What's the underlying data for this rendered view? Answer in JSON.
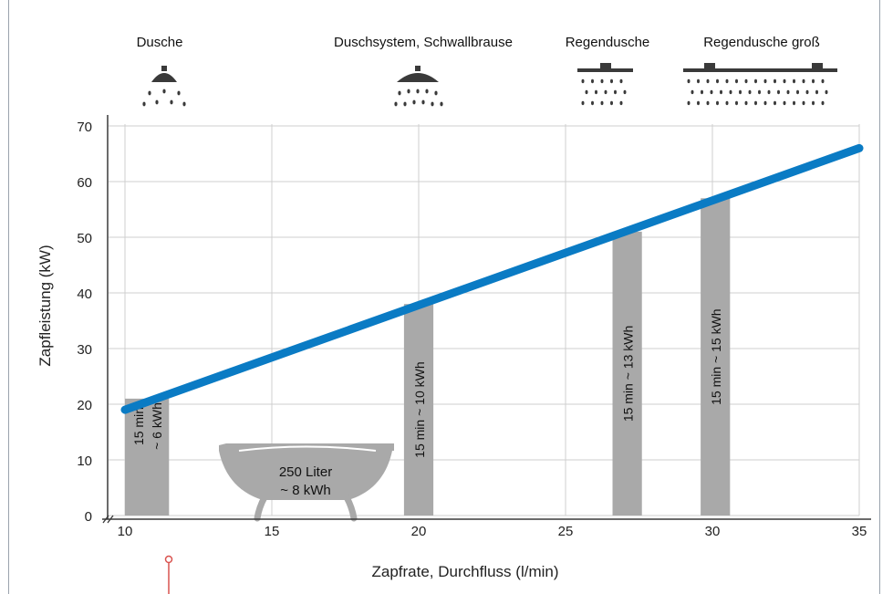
{
  "colors": {
    "line": "#0a7bc4",
    "bar": "#a9a9a9",
    "grid": "#cfcfcf",
    "axis": "#3a3a3a",
    "icon": "#3a3a3a",
    "marker": "#d9534f"
  },
  "showers": [
    {
      "label": "Dusche",
      "icon": "small-shower-head-icon"
    },
    {
      "label": "Duschsystem, Schwallbrause",
      "icon": "large-shower-head-icon"
    },
    {
      "label": "Regendusche",
      "icon": "rain-shower-icon"
    },
    {
      "label": "Regendusche groß",
      "icon": "large-rain-shower-icon"
    }
  ],
  "bathtub": {
    "line1": "250 Liter",
    "line2": "~ 8 kWh",
    "icon": "bathtub-icon"
  },
  "chart_data": {
    "type": "bar",
    "xlabel": "Zapfrate, Durchfluss (l/min)",
    "ylabel": "Zapfleistung (kW)",
    "xlim": [
      10,
      35
    ],
    "ylim": [
      0,
      70
    ],
    "xticks": [
      10,
      15,
      20,
      25,
      30,
      35
    ],
    "yticks": [
      0,
      10,
      20,
      30,
      40,
      50,
      60,
      70
    ],
    "grid": true,
    "line": {
      "x": [
        10,
        35
      ],
      "y": [
        19,
        66
      ]
    },
    "bars": [
      {
        "x_start": 10,
        "x_end": 11.5,
        "value": 21,
        "label_lines": [
          "15 min",
          "~ 6 kWh"
        ]
      },
      {
        "x_start": 19.5,
        "x_end": 20.5,
        "value": 38,
        "label_lines": [
          "15 min ~ 10 kWh"
        ]
      },
      {
        "x_start": 26.6,
        "x_end": 27.6,
        "value": 51,
        "label_lines": [
          "15 min ~ 13 kWh"
        ]
      },
      {
        "x_start": 29.6,
        "x_end": 30.6,
        "value": 57,
        "label_lines": [
          "15 min ~ 15 kWh"
        ]
      }
    ]
  }
}
